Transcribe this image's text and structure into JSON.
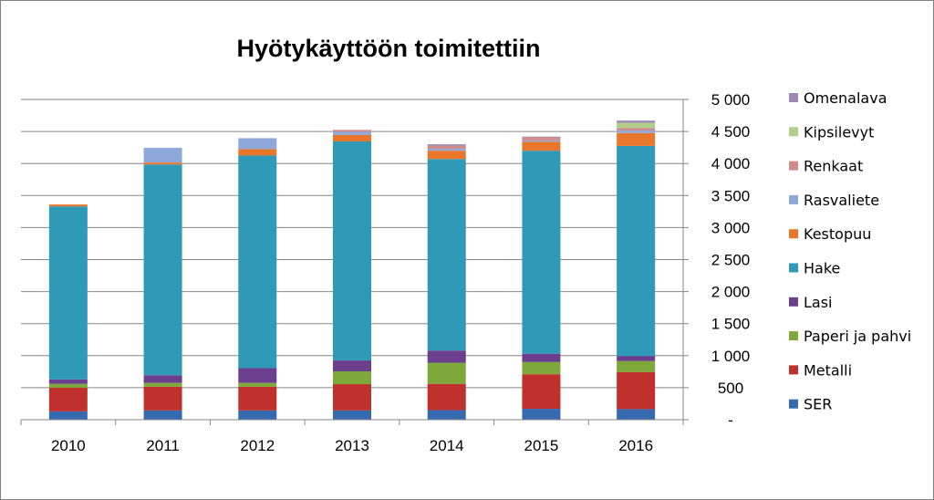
{
  "chart_data": {
    "type": "bar",
    "stacked": true,
    "title": "Hyötykäyttöön toimitettiin",
    "xlabel": "",
    "ylabel": "",
    "categories": [
      "2010",
      "2011",
      "2012",
      "2013",
      "2014",
      "2015",
      "2016"
    ],
    "ylim": [
      0,
      5000
    ],
    "ytick_values": [
      0,
      500,
      1000,
      1500,
      2000,
      2500,
      3000,
      3500,
      4000,
      4500,
      5000
    ],
    "ytick_labels": [
      "-",
      "500",
      "1 000",
      "1 500",
      "2 000",
      "2 500",
      "3 000",
      "3 500",
      "4 000",
      "4 500",
      "5 000"
    ],
    "y_axis_side": "right",
    "grid": "horizontal",
    "legend_position": "right",
    "series": [
      {
        "name": "SER",
        "color": "#3569b0",
        "values": [
          130,
          145,
          145,
          145,
          150,
          170,
          165
        ]
      },
      {
        "name": "Metalli",
        "color": "#c0302c",
        "values": [
          370,
          370,
          370,
          410,
          410,
          540,
          580
        ]
      },
      {
        "name": "Paperi ja pahvi",
        "color": "#7ea83a",
        "values": [
          60,
          60,
          60,
          200,
          330,
          190,
          170
        ]
      },
      {
        "name": "Lasi",
        "color": "#6b3f8e",
        "values": [
          70,
          120,
          230,
          170,
          190,
          130,
          80
        ]
      },
      {
        "name": "Hake",
        "color": "#2e9ab8",
        "values": [
          2700,
          3290,
          3320,
          3420,
          2990,
          3170,
          3280
        ]
      },
      {
        "name": "Kestopuu",
        "color": "#e8762b",
        "values": [
          30,
          30,
          100,
          100,
          130,
          140,
          200
        ]
      },
      {
        "name": "Rasvaliete",
        "color": "#8ea9d9",
        "values": [
          0,
          230,
          170,
          50,
          30,
          20,
          40
        ]
      },
      {
        "name": "Renkaat",
        "color": "#d08b8b",
        "values": [
          0,
          0,
          0,
          30,
          50,
          50,
          40
        ]
      },
      {
        "name": "Kipsilevyt",
        "color": "#b1cf86",
        "values": [
          0,
          0,
          0,
          0,
          0,
          0,
          80
        ]
      },
      {
        "name": "Omenalava",
        "color": "#9d88b6",
        "values": [
          0,
          0,
          0,
          0,
          20,
          10,
          35
        ]
      }
    ]
  }
}
